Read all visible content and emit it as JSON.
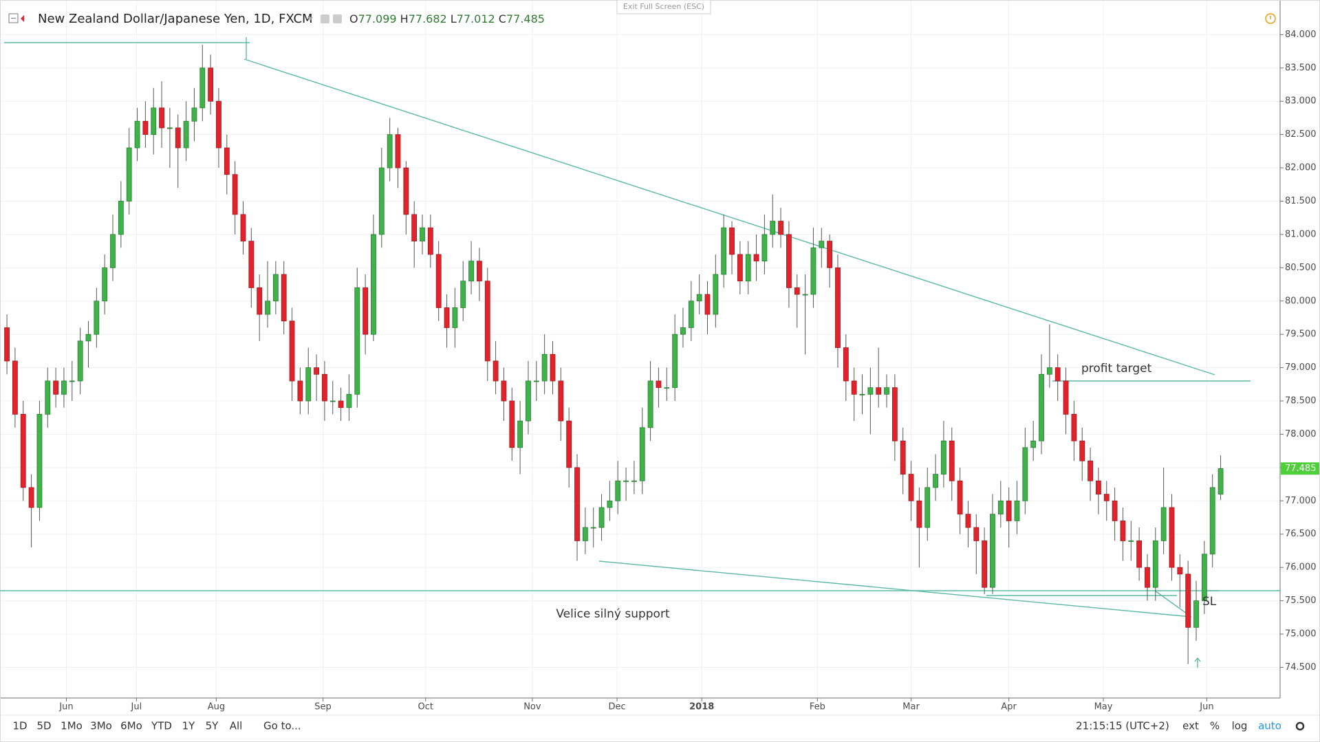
{
  "ui": {
    "exit_button": "Exit Full Screen (ESC)",
    "toolbar": [
      "1D",
      "5D",
      "1Mo",
      "3Mo",
      "6Mo",
      "YTD",
      "1Y",
      "5Y",
      "All",
      "Go to..."
    ],
    "clock": "21:15:15 (UTC+2)",
    "axis_buttons": [
      "ext",
      "%",
      "log",
      "auto"
    ]
  },
  "chart_data": {
    "type": "candlestick",
    "title": "New Zealand Dollar/Japanese Yen, 1D, FXCM",
    "ohlc_prefixes": [
      "O",
      "H",
      "L",
      "C"
    ],
    "up_color": "#3fb24a",
    "down_color": "#e3232b",
    "grid": true,
    "open": [
      79.6,
      79.1,
      78.3,
      77.2,
      76.9,
      78.3,
      78.8,
      78.6,
      78.8,
      78.8,
      79.4,
      79.5,
      80.0,
      80.5,
      81.0,
      81.5,
      82.3,
      82.7,
      82.5,
      82.9,
      82.6,
      82.6,
      82.3,
      82.7,
      82.9,
      83.5,
      83.0,
      82.3,
      81.9,
      81.3,
      80.9,
      80.2,
      79.8,
      80.0,
      80.4,
      79.7,
      78.8,
      78.5,
      79.0,
      78.9,
      78.5,
      78.5,
      78.4,
      78.6,
      80.2,
      79.5,
      81.0,
      82.0,
      82.5,
      82.0,
      81.3,
      80.9,
      81.1,
      80.7,
      79.9,
      79.6,
      79.9,
      80.3,
      80.6,
      80.3,
      79.1,
      78.8,
      78.5,
      77.8,
      78.2,
      78.8,
      78.8,
      79.2,
      78.8,
      78.2,
      77.5,
      76.4,
      76.6,
      76.6,
      76.9,
      77.0,
      77.3,
      77.3,
      77.3,
      78.1,
      78.8,
      78.7,
      78.7,
      79.5,
      79.6,
      80.0,
      80.1,
      79.8,
      80.4,
      81.1,
      80.7,
      80.3,
      80.7,
      80.6,
      81.0,
      81.2,
      81.0,
      80.2,
      80.1,
      80.1,
      80.8,
      80.9,
      80.5,
      79.3,
      78.8,
      78.6,
      78.6,
      78.7,
      78.6,
      78.7,
      77.9,
      77.4,
      77.0,
      76.6,
      77.2,
      77.4,
      77.9,
      77.3,
      76.8,
      76.6,
      76.4,
      75.7,
      76.8,
      77.0,
      76.7,
      77.0,
      77.8,
      77.9,
      78.9,
      79.0,
      78.8,
      78.3,
      77.9,
      77.6,
      77.3,
      77.1,
      77.0,
      76.7,
      76.4,
      76.4,
      76.0,
      75.7,
      76.4,
      76.9,
      76.0,
      75.9,
      75.1,
      75.5,
      76.2,
      77.099
    ],
    "high": [
      79.8,
      79.3,
      78.5,
      77.4,
      78.5,
      79.0,
      79.0,
      79.0,
      79.1,
      79.6,
      79.7,
      80.2,
      80.7,
      81.3,
      81.8,
      82.6,
      82.9,
      83.0,
      83.2,
      83.3,
      82.9,
      82.8,
      83.0,
      83.2,
      83.85,
      83.7,
      83.2,
      82.5,
      82.1,
      81.5,
      81.1,
      80.4,
      80.6,
      80.6,
      80.6,
      79.9,
      79.0,
      79.3,
      79.2,
      79.1,
      78.8,
      78.7,
      78.9,
      80.5,
      80.4,
      81.3,
      82.3,
      82.75,
      82.6,
      82.1,
      81.5,
      81.3,
      81.3,
      80.9,
      80.1,
      80.2,
      80.6,
      80.9,
      80.8,
      80.5,
      79.4,
      79.0,
      78.7,
      78.5,
      79.1,
      79.1,
      79.5,
      79.4,
      79.0,
      78.4,
      77.7,
      76.9,
      76.9,
      77.1,
      77.3,
      77.6,
      77.5,
      77.6,
      78.4,
      79.1,
      79.0,
      79.0,
      79.8,
      79.9,
      80.3,
      80.4,
      80.3,
      80.7,
      81.3,
      81.2,
      80.9,
      80.9,
      81.0,
      81.3,
      81.6,
      81.4,
      81.2,
      80.4,
      80.4,
      81.1,
      81.1,
      81.0,
      80.7,
      79.5,
      79.0,
      78.9,
      79.0,
      79.3,
      78.9,
      78.9,
      78.1,
      77.6,
      77.2,
      77.5,
      77.7,
      78.2,
      78.1,
      77.5,
      77.0,
      76.8,
      76.6,
      77.1,
      77.3,
      77.2,
      77.3,
      78.1,
      78.2,
      79.2,
      79.65,
      79.2,
      79.0,
      78.5,
      78.1,
      77.8,
      77.5,
      77.3,
      77.2,
      76.9,
      76.7,
      76.6,
      76.2,
      76.6,
      77.5,
      77.1,
      76.2,
      76.1,
      75.8,
      76.4,
      77.4,
      77.682
    ],
    "low": [
      78.9,
      78.1,
      77.0,
      76.3,
      76.7,
      78.1,
      78.4,
      78.4,
      78.5,
      78.6,
      79.0,
      79.3,
      79.8,
      80.3,
      80.8,
      81.3,
      82.1,
      82.3,
      82.2,
      82.3,
      82.0,
      81.7,
      82.1,
      82.4,
      82.7,
      82.8,
      82.0,
      81.6,
      81.0,
      80.7,
      79.9,
      79.4,
      79.6,
      79.8,
      79.5,
      78.5,
      78.3,
      78.3,
      78.5,
      78.2,
      78.3,
      78.2,
      78.2,
      78.4,
      79.2,
      79.4,
      80.8,
      81.8,
      81.7,
      81.0,
      80.5,
      80.7,
      80.5,
      79.7,
      79.3,
      79.3,
      79.7,
      80.1,
      80.0,
      78.8,
      78.6,
      78.2,
      77.6,
      77.4,
      78.0,
      78.5,
      78.6,
      78.6,
      77.9,
      77.2,
      76.1,
      76.2,
      76.3,
      76.4,
      76.7,
      76.8,
      77.0,
      77.1,
      77.1,
      77.9,
      78.4,
      78.5,
      78.5,
      79.3,
      79.4,
      79.8,
      79.5,
      79.6,
      80.2,
      80.4,
      80.1,
      80.1,
      80.3,
      80.4,
      80.8,
      80.8,
      79.9,
      79.6,
      79.2,
      79.9,
      80.5,
      80.2,
      79.0,
      78.5,
      78.2,
      78.3,
      78.0,
      78.4,
      78.4,
      77.6,
      77.1,
      76.7,
      76.0,
      76.4,
      77.0,
      77.2,
      77.0,
      76.5,
      76.3,
      75.9,
      75.6,
      75.6,
      76.6,
      76.3,
      76.5,
      76.8,
      77.6,
      77.7,
      78.7,
      78.5,
      78.0,
      77.6,
      77.3,
      77.0,
      76.8,
      76.7,
      76.4,
      76.1,
      76.1,
      75.8,
      75.5,
      75.5,
      76.2,
      75.8,
      75.4,
      74.55,
      74.9,
      75.3,
      76.0,
      77.012
    ],
    "close": [
      79.1,
      78.3,
      77.2,
      76.9,
      78.3,
      78.8,
      78.6,
      78.8,
      78.8,
      79.4,
      79.5,
      80.0,
      80.5,
      81.0,
      81.5,
      82.3,
      82.7,
      82.5,
      82.9,
      82.6,
      82.6,
      82.3,
      82.7,
      82.9,
      83.5,
      83.0,
      82.3,
      81.9,
      81.3,
      80.9,
      80.2,
      79.8,
      80.0,
      80.4,
      79.7,
      78.8,
      78.5,
      79.0,
      78.9,
      78.5,
      78.5,
      78.4,
      78.6,
      80.2,
      79.5,
      81.0,
      82.0,
      82.5,
      82.0,
      81.3,
      80.9,
      81.1,
      80.7,
      79.9,
      79.6,
      79.9,
      80.3,
      80.6,
      80.3,
      79.1,
      78.8,
      78.5,
      77.8,
      78.2,
      78.8,
      78.8,
      79.2,
      78.8,
      78.2,
      77.5,
      76.4,
      76.6,
      76.6,
      76.9,
      77.0,
      77.3,
      77.3,
      77.3,
      78.1,
      78.8,
      78.7,
      78.7,
      79.5,
      79.6,
      80.0,
      80.1,
      79.8,
      80.4,
      81.1,
      80.7,
      80.3,
      80.7,
      80.6,
      81.0,
      81.2,
      81.0,
      80.2,
      80.1,
      80.1,
      80.8,
      80.9,
      80.5,
      79.3,
      78.8,
      78.6,
      78.6,
      78.7,
      78.6,
      78.7,
      77.9,
      77.4,
      77.0,
      76.6,
      77.2,
      77.4,
      77.9,
      77.3,
      76.8,
      76.6,
      76.4,
      75.7,
      76.8,
      77.0,
      76.7,
      77.0,
      77.8,
      77.9,
      78.9,
      79.0,
      78.8,
      78.3,
      77.9,
      77.6,
      77.3,
      77.1,
      77.0,
      76.7,
      76.4,
      76.4,
      76.0,
      75.7,
      76.4,
      76.9,
      76.0,
      75.9,
      75.1,
      75.5,
      76.2,
      77.2,
      77.485
    ],
    "xlim": [
      -0.85,
      156.3
    ],
    "xticks": [
      {
        "value": 7.3,
        "label": "Jun"
      },
      {
        "value": 15.9,
        "label": "Jul"
      },
      {
        "value": 25.7,
        "label": "Aug"
      },
      {
        "value": 38.8,
        "label": "Sep"
      },
      {
        "value": 51.4,
        "label": "Oct"
      },
      {
        "value": 64.5,
        "label": "Nov"
      },
      {
        "value": 74.9,
        "label": "Dec"
      },
      {
        "value": 85.3,
        "label": "2018"
      },
      {
        "value": 99.5,
        "label": "Feb"
      },
      {
        "value": 111,
        "label": "Mar"
      },
      {
        "value": 123,
        "label": "Apr"
      },
      {
        "value": 134.6,
        "label": "May"
      },
      {
        "value": 147.3,
        "label": "Jun"
      }
    ],
    "ylim": [
      74.04,
      84.52
    ],
    "yticks": [
      {
        "value": 74.5,
        "label": "74.500"
      },
      {
        "value": 75,
        "label": "75.000"
      },
      {
        "value": 75.5,
        "label": "75.500"
      },
      {
        "value": 76,
        "label": "76.000"
      },
      {
        "value": 76.5,
        "label": "76.500"
      },
      {
        "value": 77,
        "label": "77.000"
      },
      {
        "value": 77.5,
        "label": "77.500"
      },
      {
        "value": 78,
        "label": "78.000"
      },
      {
        "value": 78.5,
        "label": "78.500"
      },
      {
        "value": 79,
        "label": "79.000"
      },
      {
        "value": 79.5,
        "label": "79.500"
      },
      {
        "value": 80,
        "label": "80.000"
      },
      {
        "value": 80.5,
        "label": "80.500"
      },
      {
        "value": 81,
        "label": "81.000"
      },
      {
        "value": 81.5,
        "label": "81.500"
      },
      {
        "value": 82,
        "label": "82.000"
      },
      {
        "value": 82.5,
        "label": "82.500"
      },
      {
        "value": 83,
        "label": "83.000"
      },
      {
        "value": 83.5,
        "label": "83.500"
      },
      {
        "value": 84,
        "label": "84.000"
      }
    ],
    "annotations": [
      "profit target",
      "Velice silný support",
      "SL"
    ]
  }
}
